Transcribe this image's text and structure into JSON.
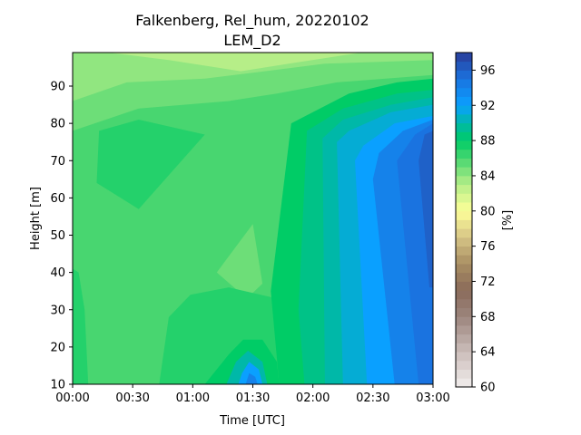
{
  "chart_data": {
    "type": "heatmap",
    "title_line1": "Falkenberg, Rel_hum, 20220102",
    "title_line2": "LEM_D2",
    "xlabel": "Time [UTC]",
    "ylabel": "Height [m]",
    "colorbar_label": "[%]",
    "x_ticks": [
      "00:00",
      "00:30",
      "01:00",
      "01:30",
      "02:00",
      "02:30",
      "03:00"
    ],
    "x_tick_hours": [
      0,
      0.5,
      1,
      1.5,
      2,
      2.5,
      3
    ],
    "y_ticks": [
      10,
      20,
      30,
      40,
      50,
      60,
      70,
      80,
      90
    ],
    "xlim_hours": [
      0,
      3
    ],
    "ylim": [
      10,
      99
    ],
    "colorbar_ticks": [
      60,
      64,
      68,
      72,
      76,
      80,
      84,
      88,
      92,
      96
    ],
    "colorbar_range": [
      60,
      98
    ],
    "colorbar_step": 1,
    "colorbar_stops": [
      {
        "value": 60,
        "color": "#f2eeee"
      },
      {
        "value": 64,
        "color": "#cbbdb9"
      },
      {
        "value": 68,
        "color": "#9c857d"
      },
      {
        "value": 71,
        "color": "#8a6a5a"
      },
      {
        "value": 74,
        "color": "#a88e62"
      },
      {
        "value": 77,
        "color": "#d6c486"
      },
      {
        "value": 80,
        "color": "#feff99"
      },
      {
        "value": 83,
        "color": "#b6ee88"
      },
      {
        "value": 86,
        "color": "#48d670"
      },
      {
        "value": 88,
        "color": "#00cc66"
      },
      {
        "value": 90,
        "color": "#00b8a8"
      },
      {
        "value": 92,
        "color": "#0aa0ff"
      },
      {
        "value": 95,
        "color": "#1a73e0"
      },
      {
        "value": 98,
        "color": "#2a3c98"
      }
    ],
    "regions": [
      {
        "name": "background",
        "value": 86,
        "points": [
          [
            0,
            10
          ],
          [
            3,
            10
          ],
          [
            3,
            99
          ],
          [
            0,
            99
          ]
        ]
      },
      {
        "name": "top-band-1",
        "value": 85,
        "points": [
          [
            0,
            78
          ],
          [
            0.55,
            84
          ],
          [
            1.3,
            86
          ],
          [
            1.7,
            88
          ],
          [
            2.2,
            91
          ],
          [
            3,
            93
          ],
          [
            3,
            99
          ],
          [
            0,
            99
          ]
        ]
      },
      {
        "name": "top-band-2",
        "value": 84,
        "points": [
          [
            0,
            86
          ],
          [
            0.45,
            91
          ],
          [
            1.1,
            92
          ],
          [
            1.6,
            94
          ],
          [
            2.1,
            96
          ],
          [
            3,
            97
          ],
          [
            3,
            99
          ],
          [
            0,
            99
          ]
        ]
      },
      {
        "name": "top-band-3",
        "value": 83,
        "points": [
          [
            0.3,
            99
          ],
          [
            0.8,
            97
          ],
          [
            1.4,
            94
          ],
          [
            1.8,
            96
          ],
          [
            2.2,
            98
          ],
          [
            2.4,
            99
          ]
        ]
      },
      {
        "name": "left-blob",
        "value": 87,
        "points": [
          [
            0.22,
            78
          ],
          [
            0.55,
            81
          ],
          [
            1.1,
            77
          ],
          [
            0.55,
            57
          ],
          [
            0.2,
            64
          ]
        ]
      },
      {
        "name": "center-spot",
        "value": 85,
        "points": [
          [
            1.2,
            40
          ],
          [
            1.5,
            53
          ],
          [
            1.58,
            37
          ],
          [
            1.45,
            33
          ]
        ]
      },
      {
        "name": "left-edge-strip",
        "value": 87,
        "points": [
          [
            0,
            10
          ],
          [
            0.13,
            10
          ],
          [
            0.1,
            30
          ],
          [
            0.05,
            40
          ],
          [
            0,
            41
          ]
        ]
      },
      {
        "name": "bottom-middle",
        "value": 87,
        "points": [
          [
            0.72,
            10
          ],
          [
            2.05,
            10
          ],
          [
            1.95,
            30
          ],
          [
            1.7,
            33
          ],
          [
            1.3,
            36
          ],
          [
            0.98,
            34
          ],
          [
            0.8,
            28
          ]
        ]
      },
      {
        "name": "right-wedge-88",
        "value": 88,
        "points": [
          [
            1.72,
            10
          ],
          [
            3,
            10
          ],
          [
            3,
            92
          ],
          [
            2.7,
            91
          ],
          [
            2.3,
            88
          ],
          [
            1.82,
            80
          ],
          [
            1.65,
            35
          ]
        ]
      },
      {
        "name": "right-wedge-89",
        "value": 89,
        "points": [
          [
            1.93,
            10
          ],
          [
            3,
            10
          ],
          [
            3,
            89
          ],
          [
            2.7,
            88
          ],
          [
            2.25,
            84
          ],
          [
            1.95,
            78
          ],
          [
            1.88,
            30
          ]
        ]
      },
      {
        "name": "right-wedge-90",
        "value": 90,
        "points": [
          [
            2.1,
            10
          ],
          [
            3,
            10
          ],
          [
            3,
            87
          ],
          [
            2.65,
            85
          ],
          [
            2.25,
            81
          ],
          [
            2.08,
            76
          ]
        ]
      },
      {
        "name": "right-wedge-91",
        "value": 91,
        "points": [
          [
            2.25,
            10
          ],
          [
            3,
            10
          ],
          [
            3,
            85
          ],
          [
            2.65,
            83
          ],
          [
            2.3,
            78
          ],
          [
            2.2,
            75
          ]
        ]
      },
      {
        "name": "right-wedge-92",
        "value": 92,
        "points": [
          [
            2.45,
            10
          ],
          [
            3,
            10
          ],
          [
            3,
            82
          ],
          [
            2.68,
            80
          ],
          [
            2.42,
            74
          ],
          [
            2.35,
            70
          ]
        ]
      },
      {
        "name": "right-wedge-94",
        "value": 94,
        "points": [
          [
            2.68,
            10
          ],
          [
            3,
            10
          ],
          [
            3,
            81
          ],
          [
            2.75,
            78
          ],
          [
            2.55,
            72
          ],
          [
            2.5,
            65
          ]
        ]
      },
      {
        "name": "right-wedge-95",
        "value": 95,
        "points": [
          [
            2.88,
            10
          ],
          [
            3,
            10
          ],
          [
            3,
            80
          ],
          [
            2.85,
            77
          ],
          [
            2.7,
            70
          ]
        ]
      },
      {
        "name": "right-wedge-96",
        "value": 96,
        "points": [
          [
            2.97,
            36
          ],
          [
            3,
            36
          ],
          [
            3,
            78
          ],
          [
            2.93,
            77
          ],
          [
            2.88,
            70
          ]
        ]
      },
      {
        "name": "bottom-moist-88",
        "value": 88,
        "points": [
          [
            1.1,
            10
          ],
          [
            1.72,
            10
          ],
          [
            1.7,
            16
          ],
          [
            1.58,
            22
          ],
          [
            1.42,
            22
          ],
          [
            1.3,
            18
          ]
        ]
      },
      {
        "name": "bottom-moist-90",
        "value": 90,
        "points": [
          [
            1.28,
            10
          ],
          [
            1.62,
            10
          ],
          [
            1.58,
            16
          ],
          [
            1.46,
            19
          ],
          [
            1.36,
            16
          ]
        ]
      },
      {
        "name": "bottom-moist-92",
        "value": 92,
        "points": [
          [
            1.38,
            10
          ],
          [
            1.58,
            10
          ],
          [
            1.55,
            14
          ],
          [
            1.47,
            16
          ],
          [
            1.41,
            13
          ]
        ]
      },
      {
        "name": "bottom-moist-94",
        "value": 94,
        "points": [
          [
            1.44,
            10
          ],
          [
            1.54,
            10
          ],
          [
            1.52,
            12
          ],
          [
            1.47,
            13
          ]
        ]
      }
    ]
  }
}
